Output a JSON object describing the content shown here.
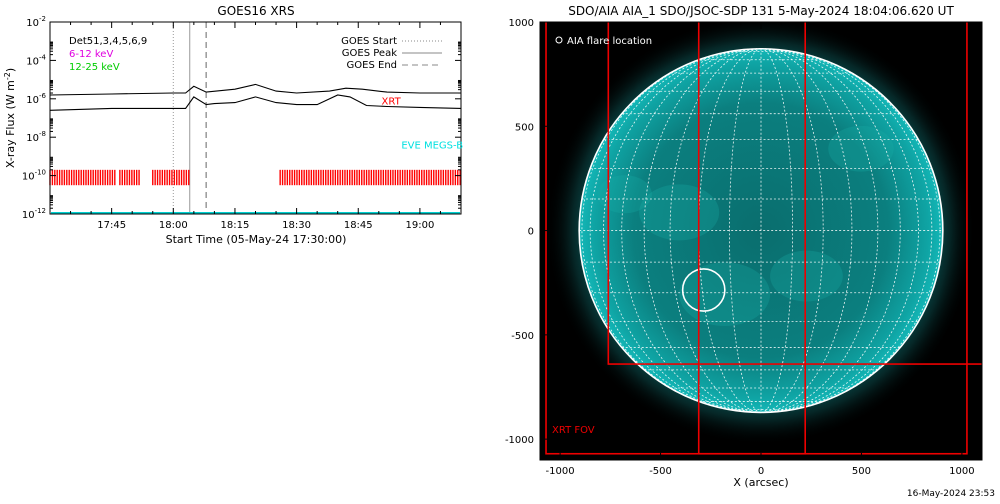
{
  "footer": {
    "timestamp": "16-May-2024 23:53"
  },
  "chart_data": [
    {
      "type": "line",
      "title": "GOES16 XRS",
      "xlabel": "Start Time (05-May-24 17:30:00)",
      "ylabel": "X-ray Flux (W m",
      "ylabel_sup": "-2",
      "ylabel_close": ")",
      "y_scale": "log",
      "xlim": [
        "17:30",
        "19:10"
      ],
      "ylim": [
        1e-12,
        0.01
      ],
      "x_ticks": [
        "17:45",
        "18:00",
        "18:15",
        "18:30",
        "18:45",
        "19:00"
      ],
      "y_ticks": [
        {
          "value": -12,
          "mantissa": "10",
          "exp": "-12"
        },
        {
          "value": -10,
          "mantissa": "10",
          "exp": "-10"
        },
        {
          "value": -8,
          "mantissa": "10",
          "exp": "-8"
        },
        {
          "value": -6,
          "mantissa": "10",
          "exp": "-6"
        },
        {
          "value": -4,
          "mantissa": "10",
          "exp": "-4"
        },
        {
          "value": -2,
          "mantissa": "10",
          "exp": "-2"
        }
      ],
      "legend_left": {
        "position": "top-left",
        "entries": [
          {
            "label": "Det51,3,4,5,6,9",
            "color": "#000000"
          },
          {
            "label": "6-12 keV",
            "color": "#e000e0"
          },
          {
            "label": "12-25 keV",
            "color": "#00cc00"
          }
        ]
      },
      "legend_right": {
        "position": "top-right",
        "entries": [
          {
            "label": "GOES Start",
            "style": "dotted"
          },
          {
            "label": "GOES Peak",
            "style": "solid"
          },
          {
            "label": "GOES End",
            "style": "dashed"
          }
        ]
      },
      "annotations": [
        {
          "text": "XRT",
          "color": "#ff0000",
          "x": "18:53",
          "y": -6.3
        },
        {
          "text": "EVE MEGS-B",
          "color": "#00e0e0",
          "x": "19:03",
          "y": -8.6
        }
      ],
      "vlines": [
        {
          "label": "GOES Start",
          "time": "18:00",
          "style": "dotted",
          "color": "#999999"
        },
        {
          "label": "GOES Peak",
          "time": "18:04",
          "style": "solid",
          "color": "#999999"
        },
        {
          "label": "GOES End",
          "time": "18:08",
          "style": "dashed",
          "color": "#999999"
        }
      ],
      "series": [
        {
          "color": "#000000",
          "x": [
            "17:30",
            "17:45",
            "18:00",
            "18:03",
            "18:05",
            "18:08",
            "18:15",
            "18:20",
            "18:25",
            "18:30",
            "18:38",
            "18:42",
            "18:46",
            "18:52",
            "19:00",
            "19:10"
          ],
          "y": [
            -5.8,
            -5.75,
            -5.7,
            -5.7,
            -5.35,
            -5.65,
            -5.5,
            -5.25,
            -5.6,
            -5.7,
            -5.6,
            -5.45,
            -5.5,
            -5.65,
            -5.7,
            -5.7
          ]
        },
        {
          "color": "#000000",
          "x": [
            "17:30",
            "17:45",
            "18:00",
            "18:03",
            "18:05",
            "18:08",
            "18:10",
            "18:15",
            "18:20",
            "18:25",
            "18:30",
            "18:35",
            "18:40",
            "18:43",
            "18:47",
            "18:52",
            "19:00",
            "19:10"
          ],
          "y": [
            -6.6,
            -6.5,
            -6.5,
            -6.5,
            -5.9,
            -6.3,
            -6.25,
            -6.2,
            -5.9,
            -6.2,
            -6.3,
            -6.3,
            -5.8,
            -5.9,
            -6.35,
            -6.4,
            -6.45,
            -6.5
          ]
        }
      ],
      "xrt_coverage": {
        "color": "#ff0000",
        "y_range": [
          -10.5,
          -9.7
        ],
        "segments": [
          [
            "17:30",
            "17:46"
          ],
          [
            "17:47",
            "17:52"
          ],
          [
            "17:55",
            "18:04"
          ],
          [
            "18:26",
            "19:10"
          ]
        ]
      },
      "eve_line": {
        "color": "#00d0d0",
        "y": -11.95
      }
    },
    {
      "type": "image",
      "title": "SDO/AIA AIA_1 SDO/JSOC-SDP 131  5-May-2024 18:04:06.620 UT",
      "xlabel": "X (arcsec)",
      "ylabel": "",
      "xlim": [
        -1100,
        1100
      ],
      "ylim": [
        -1100,
        1000
      ],
      "x_ticks": [
        -1000,
        -500,
        0,
        500,
        1000
      ],
      "y_ticks": [
        -1000,
        -500,
        0,
        500,
        1000
      ],
      "legend": {
        "label": "AIA flare location",
        "position": "top-left"
      },
      "fov_label": "XRT FOV",
      "solar_radius": 905,
      "flare_location": {
        "x": -285,
        "y": -285,
        "r": 105
      },
      "grid_lon_step_deg": 10,
      "grid_lat_step_deg": 10,
      "fov_boxes": [
        {
          "x0": -1070,
          "x1": 1025,
          "y0": -1070,
          "y1": 1025
        },
        {
          "x0": -760,
          "x1": 1135,
          "y0": -640,
          "y1": 1025
        },
        {
          "x0": -310,
          "x1": 220,
          "y0": -1070,
          "y1": 1025
        }
      ],
      "colors": {
        "disk": "#0b8a8a",
        "frame": "#ee0000",
        "grid": "#ffffff",
        "background": "#000000"
      }
    }
  ]
}
